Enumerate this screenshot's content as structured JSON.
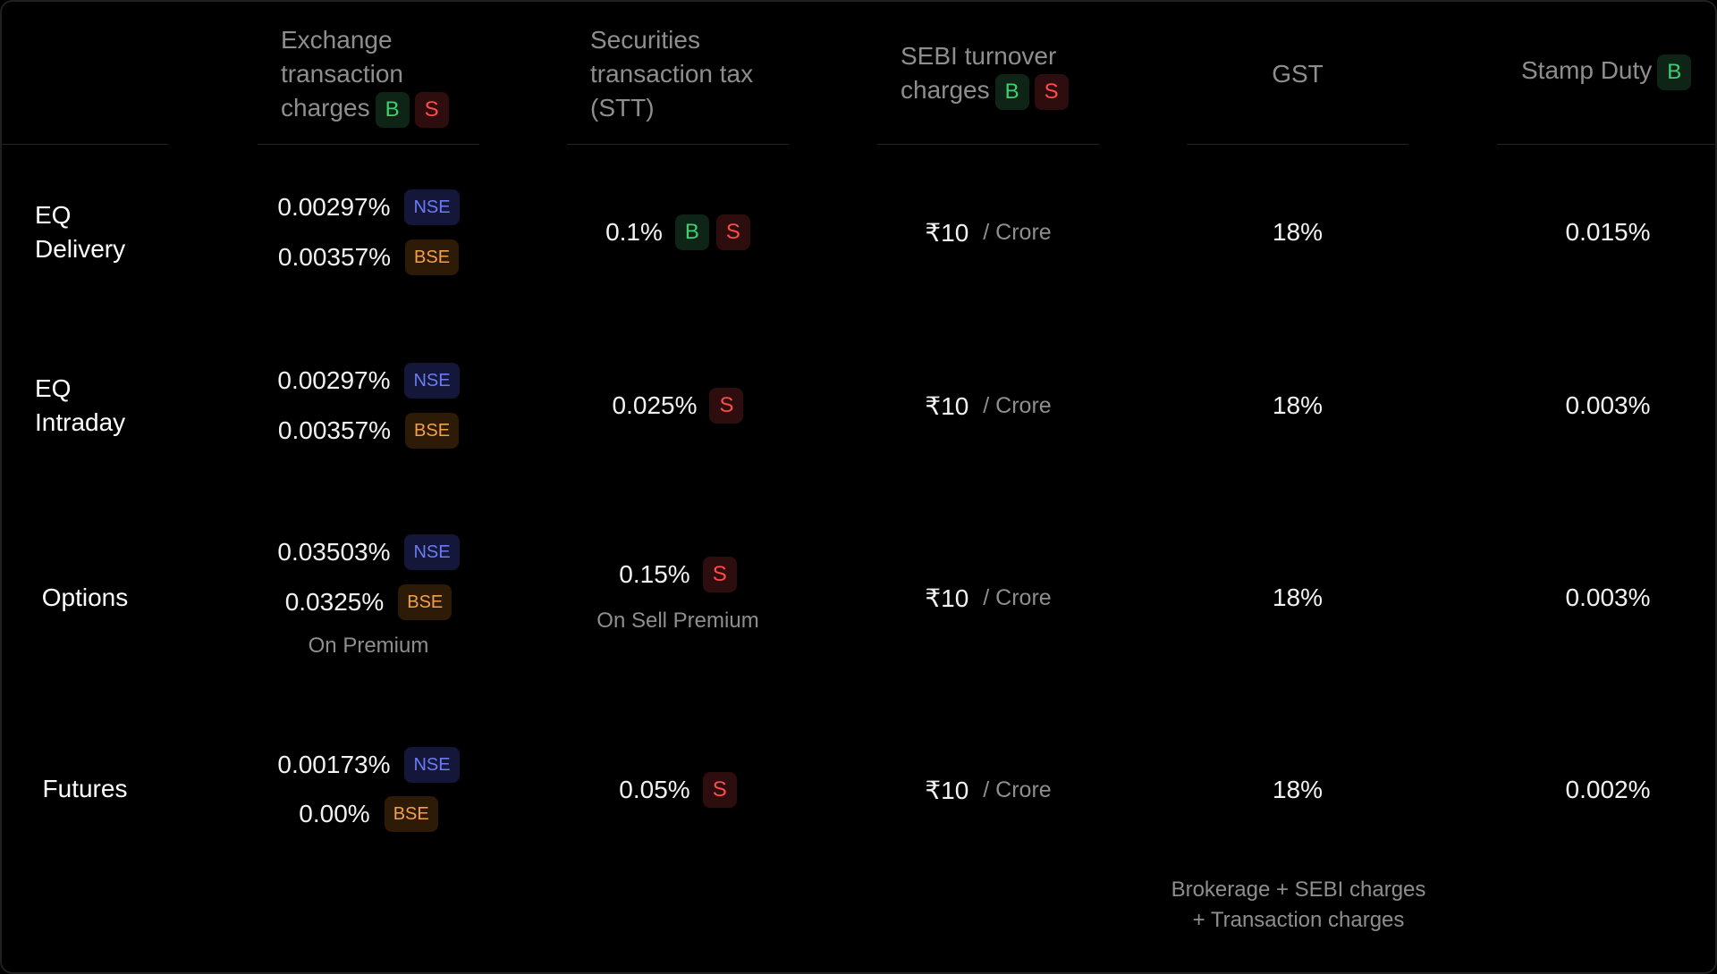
{
  "columns": {
    "exchange": {
      "label": "Exchange transaction charges",
      "badges": [
        "B",
        "S"
      ]
    },
    "stt": {
      "label": "Securities transaction tax (STT)"
    },
    "sebi": {
      "label": "SEBI turnover charges",
      "badges": [
        "B",
        "S"
      ]
    },
    "gst": {
      "label": "GST"
    },
    "stamp": {
      "label": "Stamp Duty",
      "badges": [
        "B"
      ]
    }
  },
  "rows": [
    {
      "label": "EQ Delivery",
      "exchange": [
        {
          "value": "0.00297%",
          "tag": "NSE"
        },
        {
          "value": "0.00357%",
          "tag": "BSE"
        }
      ],
      "stt": {
        "value": "0.1%",
        "badges": [
          "B",
          "S"
        ]
      },
      "sebi": {
        "value": "₹10",
        "unit": "/ Crore"
      },
      "gst": "18%",
      "stamp": "0.015%"
    },
    {
      "label": "EQ Intraday",
      "exchange": [
        {
          "value": "0.00297%",
          "tag": "NSE"
        },
        {
          "value": "0.00357%",
          "tag": "BSE"
        }
      ],
      "stt": {
        "value": "0.025%",
        "badges": [
          "S"
        ]
      },
      "sebi": {
        "value": "₹10",
        "unit": "/ Crore"
      },
      "gst": "18%",
      "stamp": "0.003%"
    },
    {
      "label": "Options",
      "exchange": [
        {
          "value": "0.03503%",
          "tag": "NSE"
        },
        {
          "value": "0.0325%",
          "tag": "BSE"
        }
      ],
      "exchange_note": "On Premium",
      "stt": {
        "value": "0.15%",
        "badges": [
          "S"
        ],
        "note": "On Sell Premium"
      },
      "sebi": {
        "value": "₹10",
        "unit": "/ Crore"
      },
      "gst": "18%",
      "stamp": "0.003%"
    },
    {
      "label": "Futures",
      "exchange": [
        {
          "value": "0.00173%",
          "tag": "NSE"
        },
        {
          "value": "0.00%",
          "tag": "BSE"
        }
      ],
      "stt": {
        "value": "0.05%",
        "badges": [
          "S"
        ]
      },
      "sebi": {
        "value": "₹10",
        "unit": "/ Crore"
      },
      "gst": "18%",
      "stamp": "0.002%"
    }
  ],
  "gst_note": [
    "Brokerage + SEBI charges",
    "+ Transaction charges"
  ],
  "colors": {
    "buy": "#3ecf70",
    "sell": "#ff4a4a",
    "nse": "#6b7cf2",
    "bse": "#f2a04a"
  }
}
